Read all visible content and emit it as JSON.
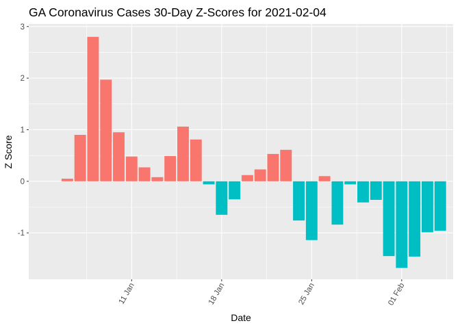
{
  "chart_data": {
    "type": "bar",
    "title": "GA Coronavirus Cases 30-Day Z-Scores for 2021-02-04",
    "xlabel": "Date",
    "ylabel": "Z Score",
    "x_range": [
      "2021-01-03",
      "2021-02-05"
    ],
    "ylim": [
      -1.9,
      3.05
    ],
    "y_ticks": [
      -1,
      0,
      1,
      2,
      3
    ],
    "x_ticks": [
      {
        "date": "2021-01-11",
        "label": "11 Jan"
      },
      {
        "date": "2021-01-18",
        "label": "18 Jan"
      },
      {
        "date": "2021-01-25",
        "label": "25 Jan"
      },
      {
        "date": "2021-02-01",
        "label": "01 Feb"
      }
    ],
    "grid": true,
    "legend": "none",
    "colors": {
      "positive": "#F8766D",
      "negative": "#00BFC4",
      "panel": "#EBEBEB",
      "grid": "#FFFFFF"
    },
    "dates": [
      "2021-01-06",
      "2021-01-07",
      "2021-01-08",
      "2021-01-09",
      "2021-01-10",
      "2021-01-11",
      "2021-01-12",
      "2021-01-13",
      "2021-01-14",
      "2021-01-15",
      "2021-01-16",
      "2021-01-17",
      "2021-01-18",
      "2021-01-19",
      "2021-01-20",
      "2021-01-21",
      "2021-01-22",
      "2021-01-23",
      "2021-01-24",
      "2021-01-25",
      "2021-01-26",
      "2021-01-27",
      "2021-01-28",
      "2021-01-29",
      "2021-01-30",
      "2021-01-31",
      "2021-02-01",
      "2021-02-02",
      "2021-02-03",
      "2021-02-04"
    ],
    "values": [
      0.05,
      0.9,
      2.8,
      1.97,
      0.95,
      0.48,
      0.27,
      0.08,
      0.49,
      1.06,
      0.81,
      -0.06,
      -0.65,
      -0.35,
      0.12,
      0.23,
      0.53,
      0.61,
      -0.76,
      -1.14,
      0.1,
      -0.84,
      -0.06,
      -0.41,
      -0.36,
      -1.45,
      -1.68,
      -1.46,
      -0.99,
      -0.96
    ]
  }
}
